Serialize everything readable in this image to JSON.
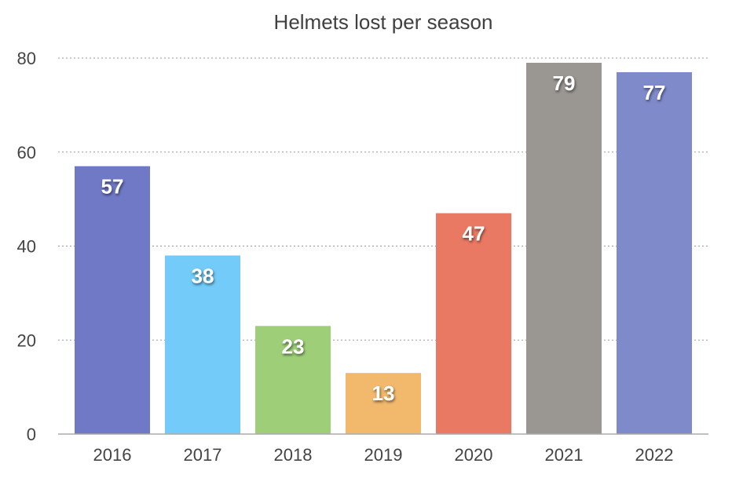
{
  "chart_data": {
    "type": "bar",
    "title": "Helmets lost per season",
    "xlabel": "",
    "ylabel": "",
    "categories": [
      "2016",
      "2017",
      "2018",
      "2019",
      "2020",
      "2021",
      "2022"
    ],
    "values": [
      57,
      38,
      23,
      13,
      47,
      79,
      77
    ],
    "colors": [
      "#6f79c6",
      "#72cbf8",
      "#9ecf78",
      "#f2b86c",
      "#ea7963",
      "#9a9692",
      "#7f8acb"
    ],
    "ylim": [
      0,
      80
    ],
    "yticks": [
      "0",
      "20",
      "40",
      "60",
      "80"
    ],
    "grid": true,
    "legend": "none"
  }
}
